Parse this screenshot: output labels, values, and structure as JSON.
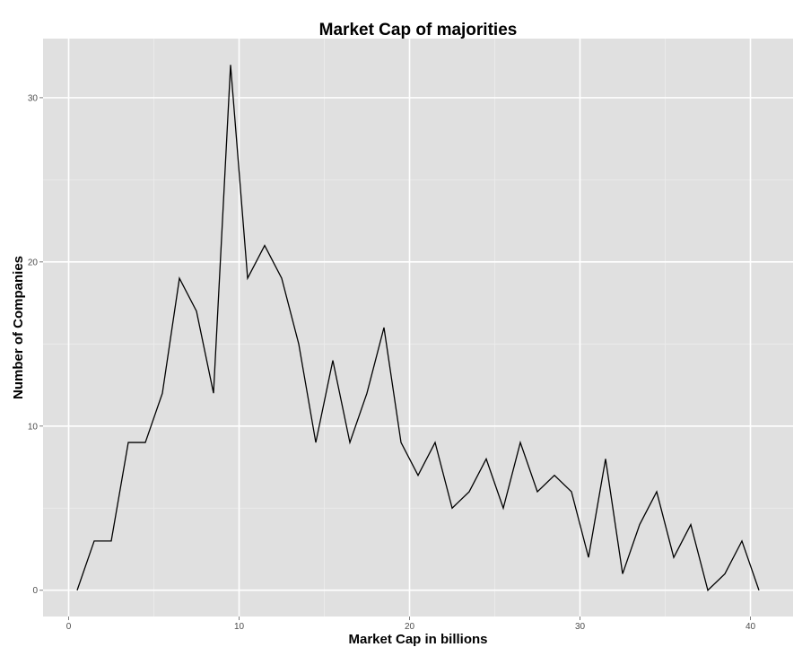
{
  "chart_data": {
    "type": "line",
    "title": "Market Cap of majorities",
    "xlabel": "Market Cap in billions",
    "ylabel": "Number of Companies",
    "xlim": [
      -1.5,
      42.5
    ],
    "ylim": [
      -1.6,
      33.6
    ],
    "x_ticks": [
      0,
      10,
      20,
      30,
      40
    ],
    "y_ticks": [
      0,
      10,
      20,
      30
    ],
    "x_tick_labels": [
      "0",
      "10",
      "20",
      "30",
      "40"
    ],
    "y_tick_labels": [
      "0",
      "10",
      "20",
      "30"
    ],
    "grid": true,
    "legend": "none",
    "colors": {
      "panel": "#e0e0e0",
      "grid_major": "#ffffff",
      "grid_minor": "#ececec",
      "line": "#000000",
      "tick_text": "#4d4d4d"
    },
    "series": [
      {
        "x": [
          0.5,
          1.5,
          2.5,
          3.5,
          4.5,
          5.5,
          6.5,
          7.5,
          8.5,
          9.5,
          10.5,
          11.5,
          12.5,
          13.5,
          14.5,
          15.5,
          16.5,
          17.5,
          18.5,
          19.5,
          20.5,
          21.5,
          22.5,
          23.5,
          24.5,
          25.5,
          26.5,
          27.5,
          28.5,
          29.5,
          30.5,
          31.5,
          32.5,
          33.5,
          34.5,
          35.5,
          36.5,
          37.5,
          38.5,
          39.5,
          40.5
        ],
        "values": [
          0,
          3,
          3,
          9,
          9,
          12,
          19,
          17,
          12,
          32,
          19,
          21,
          19,
          15,
          9,
          14,
          9,
          12,
          16,
          9,
          7,
          9,
          5,
          6,
          8,
          5,
          9,
          6,
          7,
          6,
          2,
          8,
          1,
          4,
          6,
          2,
          4,
          0,
          1,
          3,
          0
        ]
      }
    ]
  }
}
